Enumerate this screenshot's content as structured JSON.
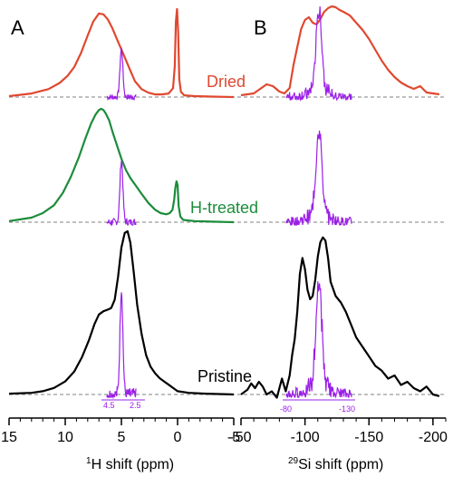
{
  "colors": {
    "dried": "#e0482f",
    "h_treated": "#1c8c3a",
    "pristine": "#000000",
    "inset": "#9b1fe8",
    "baseline": "#9a9a9a",
    "axis": "#000000"
  },
  "chart_data": [
    {
      "type": "line",
      "panel_label": "A",
      "xlabel_sup": "1",
      "xlabel_rest": "H shift (ppm)",
      "xlim": [
        15,
        -5
      ],
      "x_reversed": true,
      "xticks": [
        15,
        10,
        5,
        0,
        -5
      ],
      "xtick_labels": [
        "15",
        "10",
        "5",
        "0",
        "-5"
      ],
      "inset_ticks": [
        "4.5",
        "2.5"
      ],
      "series": [
        {
          "name": "Dried",
          "color_key": "dried",
          "x": [
            15,
            13,
            11.5,
            10.5,
            9.8,
            9.2,
            8.6,
            8.0,
            7.5,
            7.0,
            6.6,
            6.2,
            5.8,
            5.4,
            5.0,
            4.6,
            4.2,
            3.8,
            3.2,
            2.6,
            2.0,
            1.4,
            0.8,
            0.4,
            0.25,
            0.15,
            0.05,
            -0.05,
            -0.15,
            -0.3,
            -0.6,
            -1.5,
            -3,
            -5
          ],
          "y": [
            0.01,
            0.04,
            0.09,
            0.16,
            0.24,
            0.34,
            0.5,
            0.7,
            0.86,
            0.95,
            0.94,
            0.88,
            0.78,
            0.66,
            0.54,
            0.42,
            0.3,
            0.18,
            0.09,
            0.05,
            0.03,
            0.03,
            0.04,
            0.1,
            0.35,
            0.85,
            1.0,
            0.75,
            0.2,
            0.06,
            0.02,
            0.01,
            0.005,
            0.0
          ]
        },
        {
          "name": "H-treated",
          "color_key": "h_treated",
          "x": [
            15,
            13,
            12,
            11,
            10.2,
            9.5,
            8.8,
            8.2,
            7.7,
            7.3,
            7.0,
            6.8,
            6.6,
            6.4,
            6.1,
            5.8,
            5.4,
            5.0,
            4.6,
            4.2,
            3.7,
            3.2,
            2.6,
            2.0,
            1.5,
            1.0,
            0.7,
            0.45,
            0.3,
            0.2,
            0.1,
            0.0,
            -0.1,
            -0.25,
            -0.5,
            -1.5,
            -3,
            -5
          ],
          "y": [
            0.01,
            0.04,
            0.08,
            0.15,
            0.26,
            0.4,
            0.57,
            0.74,
            0.87,
            0.95,
            0.99,
            1.0,
            0.99,
            0.96,
            0.9,
            0.8,
            0.68,
            0.56,
            0.46,
            0.39,
            0.32,
            0.25,
            0.17,
            0.11,
            0.08,
            0.07,
            0.08,
            0.11,
            0.2,
            0.3,
            0.36,
            0.33,
            0.14,
            0.05,
            0.02,
            0.01,
            0.005,
            0.0
          ]
        },
        {
          "name": "Pristine",
          "color_key": "pristine",
          "x": [
            15,
            13,
            12,
            11,
            10,
            9.2,
            8.5,
            7.9,
            7.4,
            7.0,
            6.6,
            6.2,
            5.9,
            5.6,
            5.3,
            5.0,
            4.7,
            4.45,
            4.2,
            3.9,
            3.6,
            3.2,
            2.8,
            2.4,
            2.0,
            1.6,
            1.2,
            0.8,
            0.4,
            0.0,
            -1,
            -2.5,
            -5
          ],
          "y": [
            0.005,
            0.01,
            0.02,
            0.04,
            0.08,
            0.14,
            0.23,
            0.33,
            0.43,
            0.49,
            0.51,
            0.52,
            0.53,
            0.58,
            0.72,
            0.9,
            0.99,
            1.0,
            0.93,
            0.75,
            0.55,
            0.37,
            0.24,
            0.17,
            0.13,
            0.1,
            0.08,
            0.06,
            0.04,
            0.02,
            0.01,
            0.005,
            0.0
          ]
        }
      ]
    },
    {
      "type": "line",
      "panel_label": "B",
      "xlabel_sup": "29",
      "xlabel_rest": "Si shift (ppm)",
      "xlim": [
        -50,
        -210
      ],
      "x_reversed": true,
      "xticks": [
        -50,
        -100,
        -150,
        -200
      ],
      "xtick_labels": [
        "-50",
        "-100",
        "-150",
        "-200"
      ],
      "inset_ticks": [
        "-80",
        "-130"
      ],
      "series": [
        {
          "name": "Dried",
          "color_key": "dried",
          "x": [
            -50,
            -60,
            -65,
            -70,
            -75,
            -80,
            -84,
            -88,
            -91,
            -94,
            -97,
            -100,
            -103,
            -106,
            -109,
            -112,
            -115,
            -118,
            -121,
            -124,
            -127,
            -130,
            -135,
            -140,
            -145,
            -150,
            -155,
            -160,
            -165,
            -170,
            -175,
            -180,
            -185,
            -190,
            -195,
            -200,
            -205
          ],
          "y": [
            0.02,
            0.04,
            0.09,
            0.14,
            0.12,
            0.06,
            0.04,
            0.1,
            0.35,
            0.55,
            0.75,
            0.85,
            0.88,
            0.82,
            0.8,
            0.86,
            0.94,
            0.98,
            1.0,
            0.99,
            0.96,
            0.94,
            0.9,
            0.82,
            0.74,
            0.64,
            0.52,
            0.4,
            0.3,
            0.22,
            0.16,
            0.12,
            0.09,
            0.12,
            0.05,
            0.04,
            0.03
          ]
        },
        {
          "name": "Pristine",
          "color_key": "pristine",
          "x": [
            -50,
            -55,
            -58,
            -61,
            -64,
            -67,
            -70,
            -74,
            -78,
            -82,
            -85,
            -88,
            -90,
            -92,
            -94,
            -96,
            -98,
            -100,
            -102,
            -104,
            -106,
            -108,
            -110,
            -112,
            -114,
            -116,
            -118,
            -120,
            -124,
            -128,
            -132,
            -136,
            -140,
            -145,
            -150,
            -155,
            -160,
            -165,
            -170,
            -175,
            -180,
            -185,
            -190,
            -195,
            -200,
            -205
          ],
          "y": [
            0.0,
            0.03,
            0.07,
            0.04,
            0.08,
            0.05,
            0.0,
            0.02,
            -0.02,
            0.1,
            0.02,
            0.12,
            0.25,
            0.35,
            0.52,
            0.76,
            0.86,
            0.79,
            0.66,
            0.6,
            0.62,
            0.72,
            0.87,
            0.96,
            0.99,
            0.97,
            0.86,
            0.71,
            0.62,
            0.58,
            0.52,
            0.44,
            0.36,
            0.3,
            0.24,
            0.18,
            0.15,
            0.1,
            0.12,
            0.06,
            0.08,
            0.04,
            0.02,
            0.05,
            0.0,
            -0.01
          ]
        }
      ]
    }
  ],
  "insets": {
    "purple_peaks": [
      {
        "panel": "A",
        "row": "Dried",
        "height": 0.55
      },
      {
        "panel": "A",
        "row": "H-treated",
        "height": 0.55
      },
      {
        "panel": "A",
        "row": "Pristine",
        "height": 0.65
      },
      {
        "panel": "B",
        "row": "Dried",
        "height": 0.88
      },
      {
        "panel": "B",
        "row": "H-treated",
        "height": 0.8
      },
      {
        "panel": "B",
        "row": "Pristine",
        "height": 0.65
      }
    ]
  },
  "labels": {
    "dried": "Dried",
    "h_treated": "H-treated",
    "pristine": "Pristine"
  }
}
